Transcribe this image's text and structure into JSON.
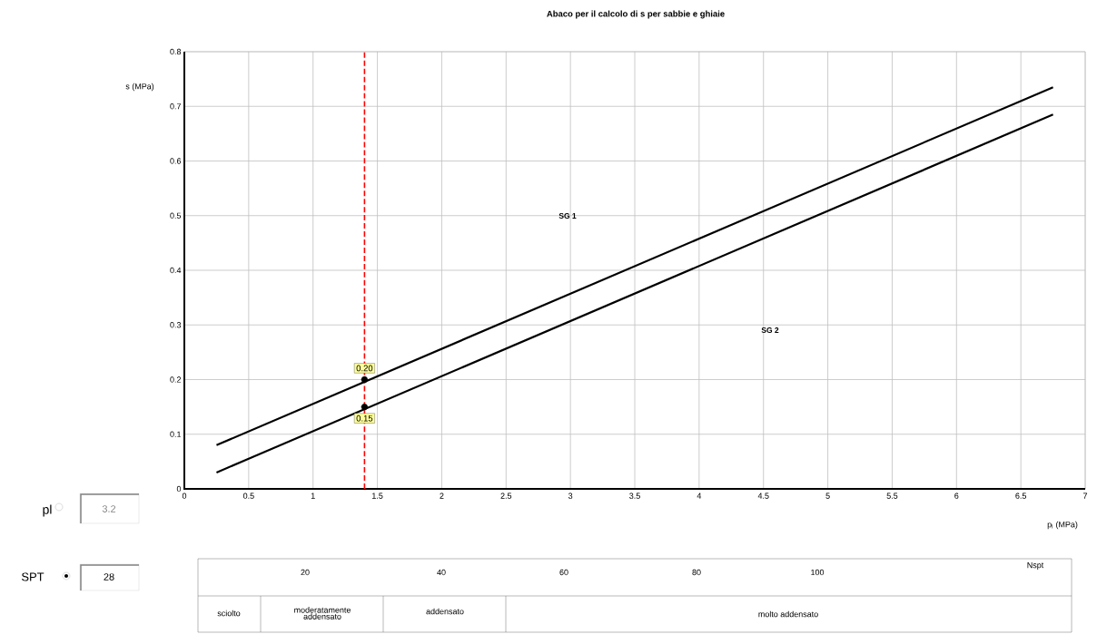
{
  "chart_data": {
    "type": "line",
    "title": "Abaco per il calcolo di s per sabbie e ghiaie",
    "xlabel": "p$_{l}$ (MPa)",
    "ylabel": "s (MPa)",
    "xlim": [
      0,
      7
    ],
    "ylim": [
      0,
      0.8
    ],
    "xticks": [
      0,
      0.5,
      1,
      1.5,
      2,
      2.5,
      3,
      3.5,
      4,
      4.5,
      5,
      5.5,
      6,
      6.5,
      7
    ],
    "yticks": [
      0,
      0.1,
      0.2,
      0.3,
      0.4,
      0.5,
      0.6,
      0.7,
      0.8
    ],
    "grid": true,
    "line_style": "solid",
    "marker": "none",
    "series": [
      {
        "color": "#000000",
        "x": [
          0.25,
          6.75
        ],
        "values": [
          0.08,
          0.735
        ]
      },
      {
        "color": "#000000",
        "x": [
          0.25,
          6.75
        ],
        "values": [
          0.03,
          0.685
        ]
      },
      {
        "type": "scatter",
        "color": "#000000",
        "x": [
          1.4,
          1.4
        ],
        "values": [
          0.2,
          0.15
        ],
        "value_labels": [
          "0.20",
          "0.15"
        ]
      }
    ],
    "ref_lines": [
      {
        "axis": "x",
        "value": 1.4,
        "color": "#ff0000",
        "line_style": "dashed"
      }
    ],
    "annotations": [
      "SG 1",
      "SG 2",
      "pl",
      "3.2",
      "SPT",
      "28",
      "20",
      "40",
      "60",
      "80",
      "100",
      "Nspt",
      "sciolto",
      "moderatamente addensato",
      "addensato",
      "molto addensato"
    ]
  }
}
